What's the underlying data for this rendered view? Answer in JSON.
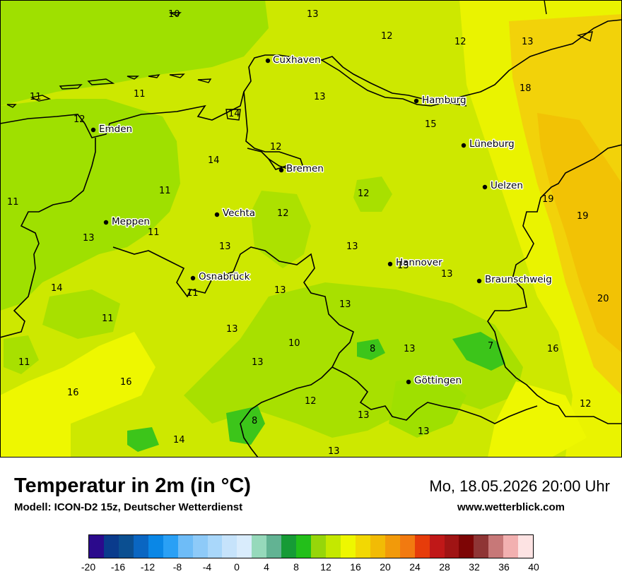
{
  "title": "Temperatur in 2m (in °C)",
  "model": "Modell: ICON-D2 15z, Deutscher Wetterdienst",
  "datetime": "Mo, 18.05.2026 20:00 Uhr",
  "website": "www.wetterblick.com",
  "cities": {
    "cuxhaven": "Cuxhaven",
    "hamburg": "Hamburg",
    "emden": "Emden",
    "lueneburg": "Lüneburg",
    "bremen": "Bremen",
    "uelzen": "Uelzen",
    "vechta": "Vechta",
    "meppen": "Meppen",
    "hannover": "Hannover",
    "osnabrueck": "Osnabrück",
    "braunschweig": "Braunschweig",
    "goettingen": "Göttingen"
  },
  "temperature_labels": [
    {
      "id": "t1",
      "value": "10"
    },
    {
      "id": "t2",
      "value": "13"
    },
    {
      "id": "t3",
      "value": "12"
    },
    {
      "id": "t4",
      "value": "12"
    },
    {
      "id": "t5",
      "value": "13"
    },
    {
      "id": "t6",
      "value": "11"
    },
    {
      "id": "t7",
      "value": "11"
    },
    {
      "id": "t8",
      "value": "13"
    },
    {
      "id": "t9",
      "value": "18"
    },
    {
      "id": "t10",
      "value": "14"
    },
    {
      "id": "t11",
      "value": "12"
    },
    {
      "id": "t12",
      "value": "15"
    },
    {
      "id": "t13",
      "value": "12"
    },
    {
      "id": "t14",
      "value": "14"
    },
    {
      "id": "t15",
      "value": "11"
    },
    {
      "id": "t16",
      "value": "11"
    },
    {
      "id": "t17",
      "value": "12"
    },
    {
      "id": "t18",
      "value": "19"
    },
    {
      "id": "t19",
      "value": "19"
    },
    {
      "id": "t20",
      "value": "12"
    },
    {
      "id": "t21",
      "value": "13"
    },
    {
      "id": "t22",
      "value": "11"
    },
    {
      "id": "t23",
      "value": "13"
    },
    {
      "id": "t24",
      "value": "13"
    },
    {
      "id": "t25",
      "value": "13"
    },
    {
      "id": "t26",
      "value": "13"
    },
    {
      "id": "t27",
      "value": "14"
    },
    {
      "id": "t28",
      "value": "11"
    },
    {
      "id": "t29",
      "value": "13"
    },
    {
      "id": "t30",
      "value": "20"
    },
    {
      "id": "t31",
      "value": "13"
    },
    {
      "id": "t32",
      "value": "11"
    },
    {
      "id": "t33",
      "value": "13"
    },
    {
      "id": "t34",
      "value": "10"
    },
    {
      "id": "t35",
      "value": "8"
    },
    {
      "id": "t36",
      "value": "13"
    },
    {
      "id": "t37",
      "value": "7"
    },
    {
      "id": "t38",
      "value": "16"
    },
    {
      "id": "t39",
      "value": "11"
    },
    {
      "id": "t40",
      "value": "13"
    },
    {
      "id": "t41",
      "value": "16"
    },
    {
      "id": "t42",
      "value": "16"
    },
    {
      "id": "t43",
      "value": "12"
    },
    {
      "id": "t44",
      "value": "12"
    },
    {
      "id": "t45",
      "value": "13"
    },
    {
      "id": "t46",
      "value": "8"
    },
    {
      "id": "t47",
      "value": "13"
    },
    {
      "id": "t48",
      "value": "14"
    },
    {
      "id": "t49",
      "value": "13"
    }
  ],
  "legend": {
    "colors": [
      "#2b0a8c",
      "#0a3b8c",
      "#0b4f91",
      "#0a66c2",
      "#0a87e6",
      "#2aa0f5",
      "#6ebcf7",
      "#8ecaf8",
      "#a9d7fa",
      "#c6e3fb",
      "#d9ecfc",
      "#96d9bb",
      "#62b393",
      "#169b36",
      "#23bf1a",
      "#96d60a",
      "#c4e800",
      "#eef700",
      "#f2d803",
      "#f2bb05",
      "#f29a0a",
      "#f27a10",
      "#e63c0a",
      "#c01818",
      "#a01414",
      "#7d0505",
      "#8f3535",
      "#c77878",
      "#f2b0b0",
      "#fde3e3"
    ],
    "tick_labels": [
      "-20",
      "-16",
      "-12",
      "-8",
      "-4",
      "0",
      "4",
      "8",
      "12",
      "16",
      "20",
      "24",
      "28",
      "32",
      "36",
      "40"
    ],
    "range": [
      -20,
      40
    ],
    "unit": "°C"
  }
}
